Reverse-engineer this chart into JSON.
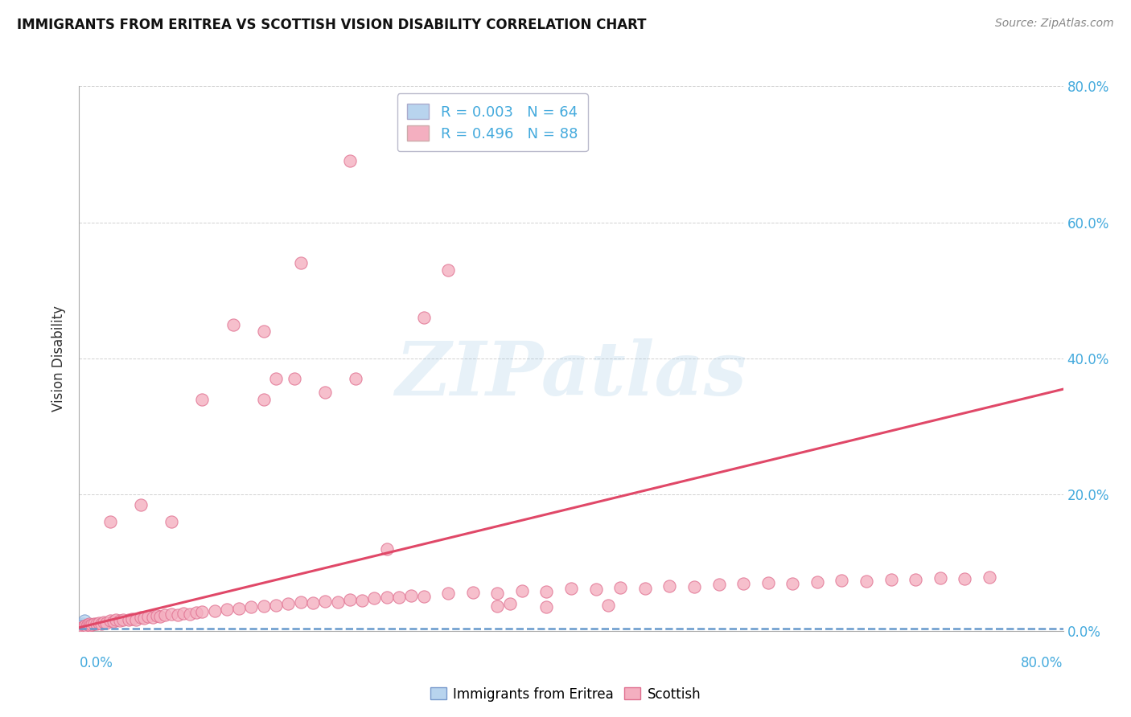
{
  "title": "IMMIGRANTS FROM ERITREA VS SCOTTISH VISION DISABILITY CORRELATION CHART",
  "source": "Source: ZipAtlas.com",
  "ylabel": "Vision Disability",
  "xlim": [
    0.0,
    0.8
  ],
  "ylim": [
    0.0,
    0.8
  ],
  "yticks": [
    0.0,
    0.2,
    0.4,
    0.6,
    0.8
  ],
  "ytick_labels": [
    "0.0%",
    "20.0%",
    "40.0%",
    "60.0%",
    "80.0%"
  ],
  "legend_r1": "R = 0.003",
  "legend_n1": "N = 64",
  "legend_r2": "R = 0.496",
  "legend_n2": "N = 88",
  "blue_color": "#b8d4ee",
  "blue_edge": "#7799cc",
  "pink_color": "#f4afc0",
  "pink_edge": "#e07090",
  "trend_blue_color": "#6699cc",
  "trend_pink_color": "#e04868",
  "background": "#ffffff",
  "grid_color": "#cccccc",
  "watermark": "ZIPatlas",
  "tick_color": "#44aadd",
  "blue_x": [
    0.001,
    0.001,
    0.002,
    0.001,
    0.002,
    0.001,
    0.001,
    0.002,
    0.001,
    0.001,
    0.002,
    0.001,
    0.001,
    0.002,
    0.001,
    0.001,
    0.002,
    0.001,
    0.001,
    0.002,
    0.001,
    0.001,
    0.002,
    0.001,
    0.003,
    0.001,
    0.002,
    0.001,
    0.001,
    0.002,
    0.001,
    0.001,
    0.002,
    0.001,
    0.001,
    0.002,
    0.001,
    0.003,
    0.001,
    0.002,
    0.001,
    0.001,
    0.001,
    0.002,
    0.001,
    0.001,
    0.003,
    0.001,
    0.002,
    0.001,
    0.001,
    0.002,
    0.001,
    0.001,
    0.002,
    0.001,
    0.001,
    0.004,
    0.001,
    0.002,
    0.001,
    0.002,
    0.001,
    0.003
  ],
  "blue_y": [
    0.005,
    0.008,
    0.004,
    0.006,
    0.007,
    0.005,
    0.003,
    0.006,
    0.004,
    0.007,
    0.005,
    0.003,
    0.006,
    0.004,
    0.007,
    0.005,
    0.003,
    0.006,
    0.004,
    0.007,
    0.005,
    0.003,
    0.006,
    0.004,
    0.007,
    0.005,
    0.003,
    0.006,
    0.004,
    0.007,
    0.005,
    0.003,
    0.006,
    0.004,
    0.007,
    0.005,
    0.003,
    0.006,
    0.004,
    0.007,
    0.005,
    0.003,
    0.008,
    0.006,
    0.004,
    0.007,
    0.01,
    0.005,
    0.003,
    0.006,
    0.004,
    0.007,
    0.005,
    0.003,
    0.006,
    0.004,
    0.007,
    0.015,
    0.005,
    0.003,
    0.006,
    0.004,
    0.007,
    0.005
  ],
  "pink_x": [
    0.001,
    0.002,
    0.003,
    0.004,
    0.005,
    0.006,
    0.007,
    0.008,
    0.009,
    0.01,
    0.012,
    0.014,
    0.016,
    0.018,
    0.02,
    0.022,
    0.025,
    0.028,
    0.03,
    0.033,
    0.036,
    0.04,
    0.043,
    0.046,
    0.05,
    0.053,
    0.056,
    0.06,
    0.063,
    0.066,
    0.07,
    0.075,
    0.08,
    0.085,
    0.09,
    0.095,
    0.1,
    0.11,
    0.12,
    0.13,
    0.14,
    0.15,
    0.16,
    0.17,
    0.18,
    0.19,
    0.2,
    0.21,
    0.22,
    0.23,
    0.24,
    0.25,
    0.26,
    0.27,
    0.28,
    0.3,
    0.32,
    0.34,
    0.36,
    0.38,
    0.4,
    0.42,
    0.44,
    0.46,
    0.48,
    0.5,
    0.52,
    0.54,
    0.56,
    0.58,
    0.6,
    0.62,
    0.64,
    0.66,
    0.68,
    0.7,
    0.72,
    0.74,
    0.025,
    0.05,
    0.075,
    0.1,
    0.125,
    0.15,
    0.175,
    0.2,
    0.225,
    0.25
  ],
  "pink_y": [
    0.004,
    0.005,
    0.006,
    0.007,
    0.008,
    0.007,
    0.009,
    0.01,
    0.008,
    0.009,
    0.011,
    0.01,
    0.012,
    0.011,
    0.013,
    0.012,
    0.015,
    0.014,
    0.016,
    0.015,
    0.017,
    0.016,
    0.018,
    0.017,
    0.02,
    0.019,
    0.021,
    0.02,
    0.022,
    0.021,
    0.023,
    0.025,
    0.024,
    0.026,
    0.025,
    0.027,
    0.028,
    0.03,
    0.032,
    0.033,
    0.035,
    0.037,
    0.038,
    0.04,
    0.042,
    0.041,
    0.044,
    0.043,
    0.046,
    0.045,
    0.048,
    0.05,
    0.049,
    0.052,
    0.051,
    0.055,
    0.057,
    0.056,
    0.059,
    0.058,
    0.062,
    0.061,
    0.064,
    0.063,
    0.066,
    0.065,
    0.068,
    0.069,
    0.071,
    0.07,
    0.072,
    0.074,
    0.073,
    0.075,
    0.076,
    0.078,
    0.077,
    0.079,
    0.16,
    0.185,
    0.16,
    0.34,
    0.45,
    0.44,
    0.37,
    0.35,
    0.37,
    0.12
  ],
  "pink_x_outliers": [
    0.38,
    0.43,
    0.35,
    0.34,
    0.28,
    0.3,
    0.22,
    0.18,
    0.16,
    0.15
  ],
  "pink_y_outliers": [
    0.035,
    0.038,
    0.04,
    0.037,
    0.46,
    0.53,
    0.69,
    0.54,
    0.37,
    0.34
  ],
  "trend_pink_x0": 0.0,
  "trend_pink_y0": 0.005,
  "trend_pink_x1": 0.8,
  "trend_pink_y1": 0.355,
  "trend_blue_y": 0.004
}
